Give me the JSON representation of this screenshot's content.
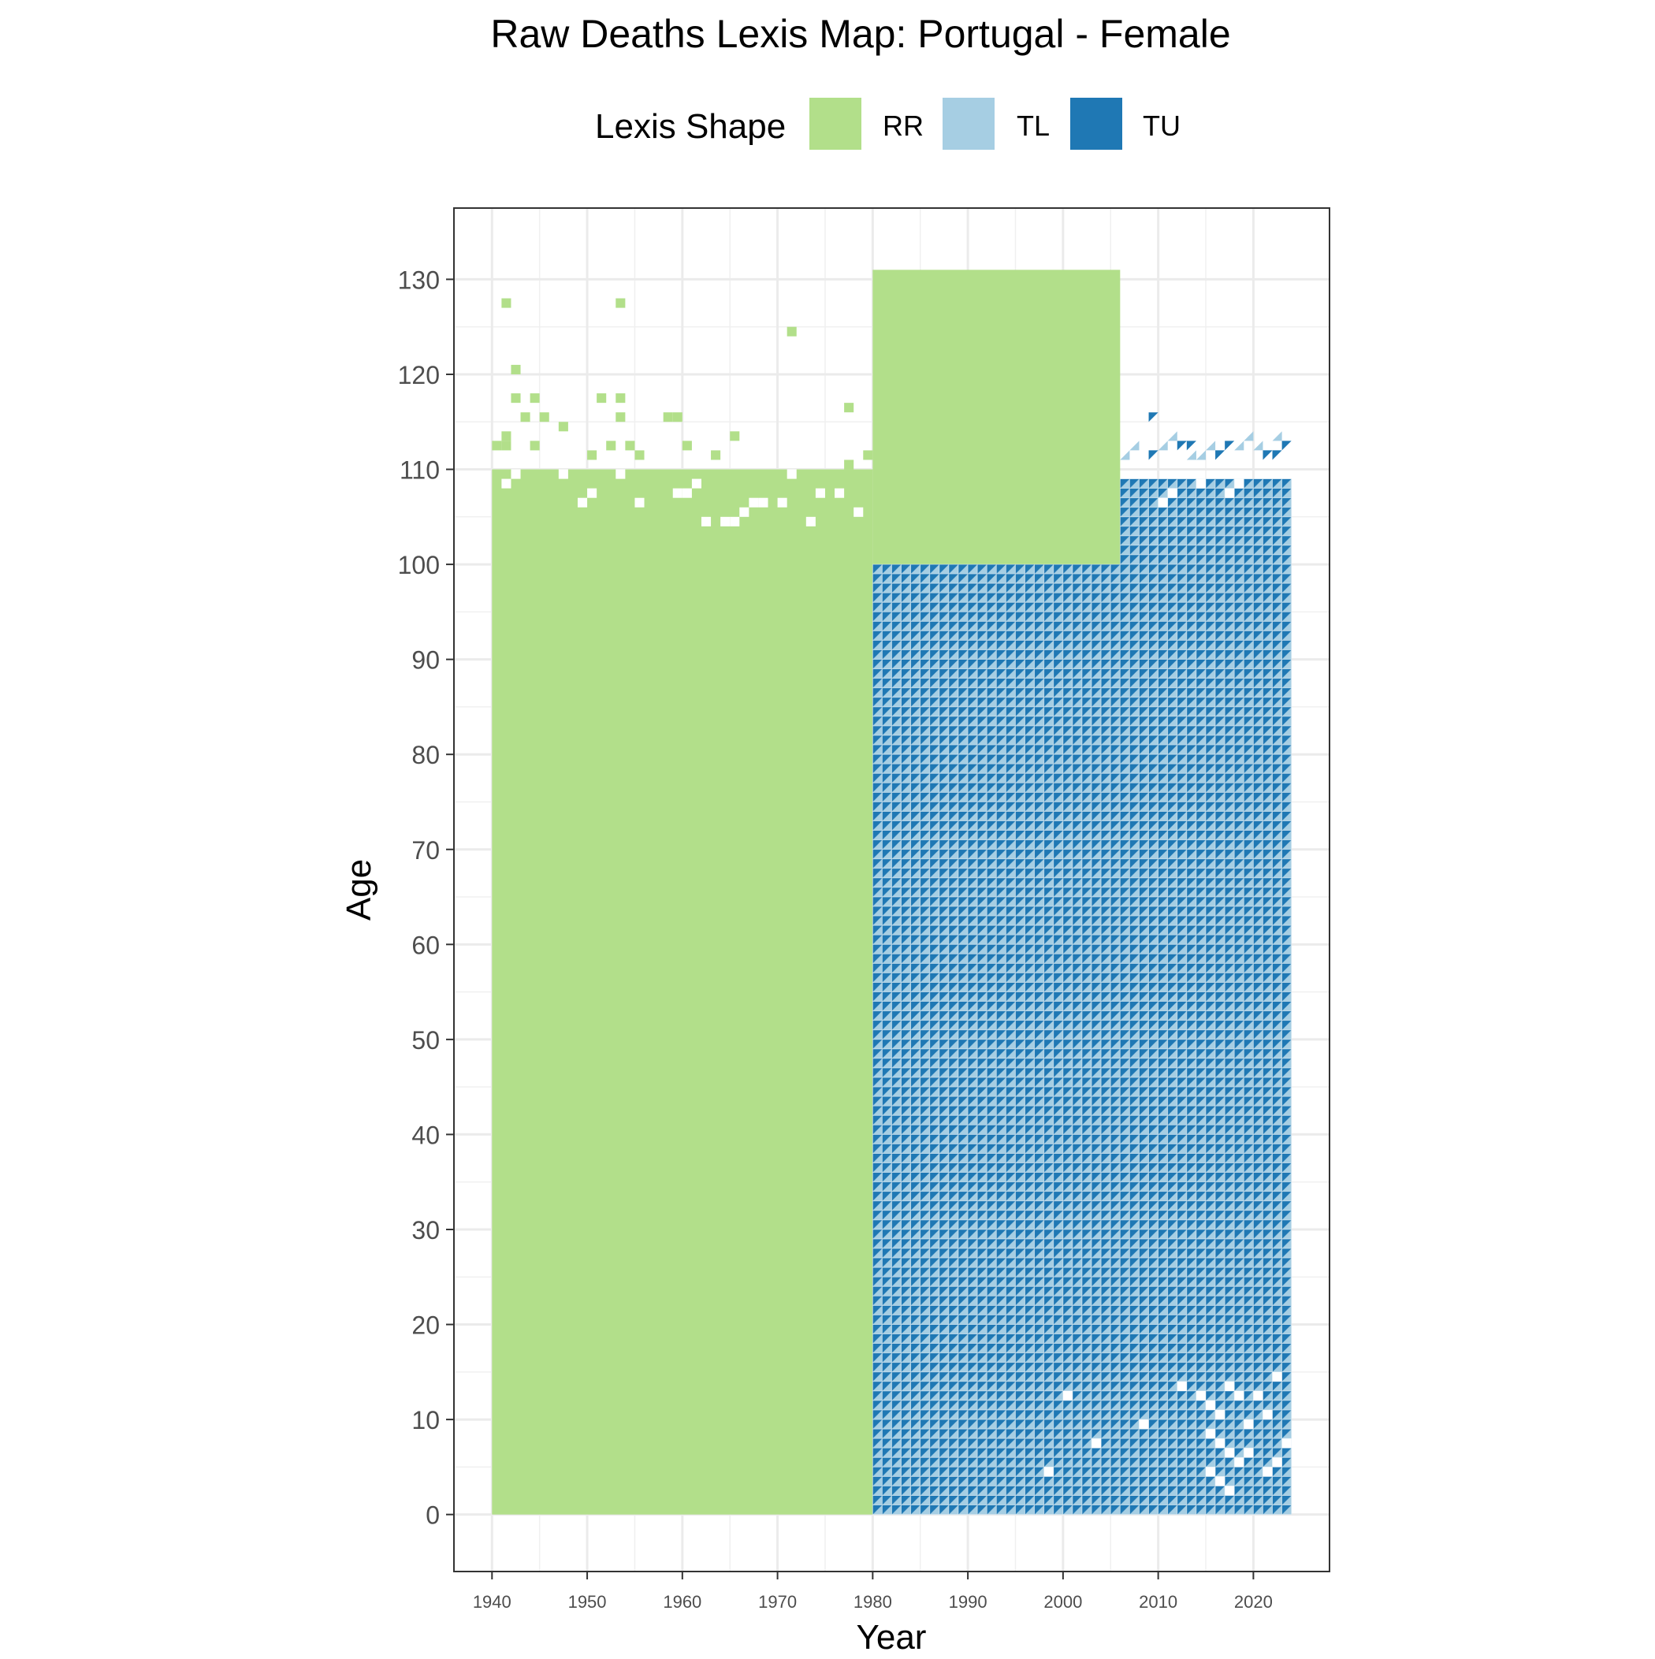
{
  "chart_data": {
    "type": "heatmap",
    "title": "Raw Deaths Lexis Map: Portugal - Female",
    "xlabel": "Year",
    "ylabel": "Age",
    "xlim": [
      1936,
      2028
    ],
    "ylim": [
      -6,
      137.5
    ],
    "x_ticks": [
      1940,
      1950,
      1960,
      1970,
      1980,
      1990,
      2000,
      2010,
      2020
    ],
    "y_ticks": [
      0,
      10,
      20,
      30,
      40,
      50,
      60,
      70,
      80,
      90,
      100,
      110,
      120,
      130
    ],
    "grid": true,
    "legend": {
      "title": "Lexis Shape",
      "position": "top",
      "entries": [
        {
          "label": "RR",
          "color": "#B2DF8A"
        },
        {
          "label": "TL",
          "color": "#A6CEE3"
        },
        {
          "label": "TU",
          "color": "#1F78B4"
        }
      ]
    },
    "regions": [
      {
        "shape": "RR",
        "years": [
          1940,
          1980
        ],
        "ages": [
          0,
          110
        ],
        "note_free": true
      },
      {
        "shape": "RR",
        "years": [
          1980,
          2006
        ],
        "ages": [
          100,
          131
        ]
      },
      {
        "shape": "TL/TU",
        "years": [
          1980,
          2024
        ],
        "ages": [
          0,
          100
        ]
      },
      {
        "shape": "TL/TU",
        "years": [
          2006,
          2024
        ],
        "ages": [
          100,
          109
        ]
      }
    ],
    "rr_cells": [
      [
        1941,
        127
      ],
      [
        1953,
        127
      ],
      [
        1971,
        124
      ],
      [
        1942,
        120
      ],
      [
        1942,
        117
      ],
      [
        1944,
        117
      ],
      [
        1951,
        117
      ],
      [
        1953,
        117
      ],
      [
        1943,
        115
      ],
      [
        1945,
        115
      ],
      [
        1953,
        115
      ],
      [
        1958,
        115
      ],
      [
        1959,
        115
      ],
      [
        1977,
        116
      ],
      [
        1947,
        114
      ],
      [
        1941,
        113
      ],
      [
        1940,
        112
      ],
      [
        1941,
        112
      ],
      [
        1944,
        112
      ],
      [
        1952,
        112
      ],
      [
        1954,
        112
      ],
      [
        1960,
        112
      ],
      [
        1965,
        113
      ],
      [
        1950,
        111
      ],
      [
        1955,
        111
      ],
      [
        1963,
        111
      ],
      [
        1977,
        110
      ],
      [
        1979,
        111
      ]
    ],
    "tltu_cells": [
      [
        2009,
        115,
        "TU"
      ],
      [
        2006,
        111,
        "TL"
      ],
      [
        2007,
        112,
        "TL"
      ],
      [
        2009,
        111,
        "TU"
      ],
      [
        2010,
        112,
        "TL"
      ],
      [
        2011,
        113,
        "TL"
      ],
      [
        2012,
        112,
        "TU"
      ],
      [
        2013,
        111,
        "TL"
      ],
      [
        2013,
        112,
        "TU"
      ],
      [
        2014,
        111,
        "TL"
      ],
      [
        2015,
        112,
        "TL"
      ],
      [
        2016,
        111,
        "TU"
      ],
      [
        2017,
        112,
        "TU"
      ],
      [
        2018,
        112,
        "TL"
      ],
      [
        2019,
        113,
        "TL"
      ],
      [
        2020,
        112,
        "TL"
      ],
      [
        2021,
        111,
        "TU"
      ],
      [
        2022,
        113,
        "TL"
      ],
      [
        2023,
        112,
        "TU"
      ],
      [
        2022,
        111,
        "TU"
      ]
    ],
    "rr_gaps": [
      [
        1941,
        108
      ],
      [
        1942,
        109
      ],
      [
        1947,
        109
      ],
      [
        1949,
        106
      ],
      [
        1950,
        107
      ],
      [
        1953,
        109
      ],
      [
        1955,
        106
      ],
      [
        1959,
        107
      ],
      [
        1960,
        107
      ],
      [
        1961,
        108
      ],
      [
        1962,
        104
      ],
      [
        1964,
        104
      ],
      [
        1965,
        104
      ],
      [
        1966,
        105
      ],
      [
        1967,
        106
      ],
      [
        1968,
        106
      ],
      [
        1970,
        106
      ],
      [
        1971,
        109
      ],
      [
        1973,
        104
      ],
      [
        1974,
        107
      ],
      [
        1976,
        107
      ],
      [
        1978,
        105
      ]
    ],
    "tltu_gaps": [
      [
        2010,
        106
      ],
      [
        2011,
        107
      ],
      [
        2014,
        108
      ],
      [
        2017,
        107
      ],
      [
        2018,
        108
      ],
      [
        2012,
        13
      ],
      [
        2014,
        12
      ],
      [
        2015,
        11
      ],
      [
        2016,
        10
      ],
      [
        2017,
        13
      ],
      [
        2018,
        12
      ],
      [
        2019,
        9
      ],
      [
        2020,
        12
      ],
      [
        2021,
        10
      ],
      [
        2015,
        8
      ],
      [
        2016,
        7
      ],
      [
        2017,
        6
      ],
      [
        2018,
        5
      ],
      [
        2019,
        6
      ],
      [
        2015,
        4
      ],
      [
        2016,
        3
      ],
      [
        2017,
        2
      ],
      [
        2021,
        4
      ],
      [
        2022,
        5
      ],
      [
        2023,
        7
      ],
      [
        1998,
        4
      ],
      [
        2000,
        12
      ],
      [
        2003,
        7
      ],
      [
        2022,
        14
      ],
      [
        2008,
        9
      ]
    ]
  }
}
